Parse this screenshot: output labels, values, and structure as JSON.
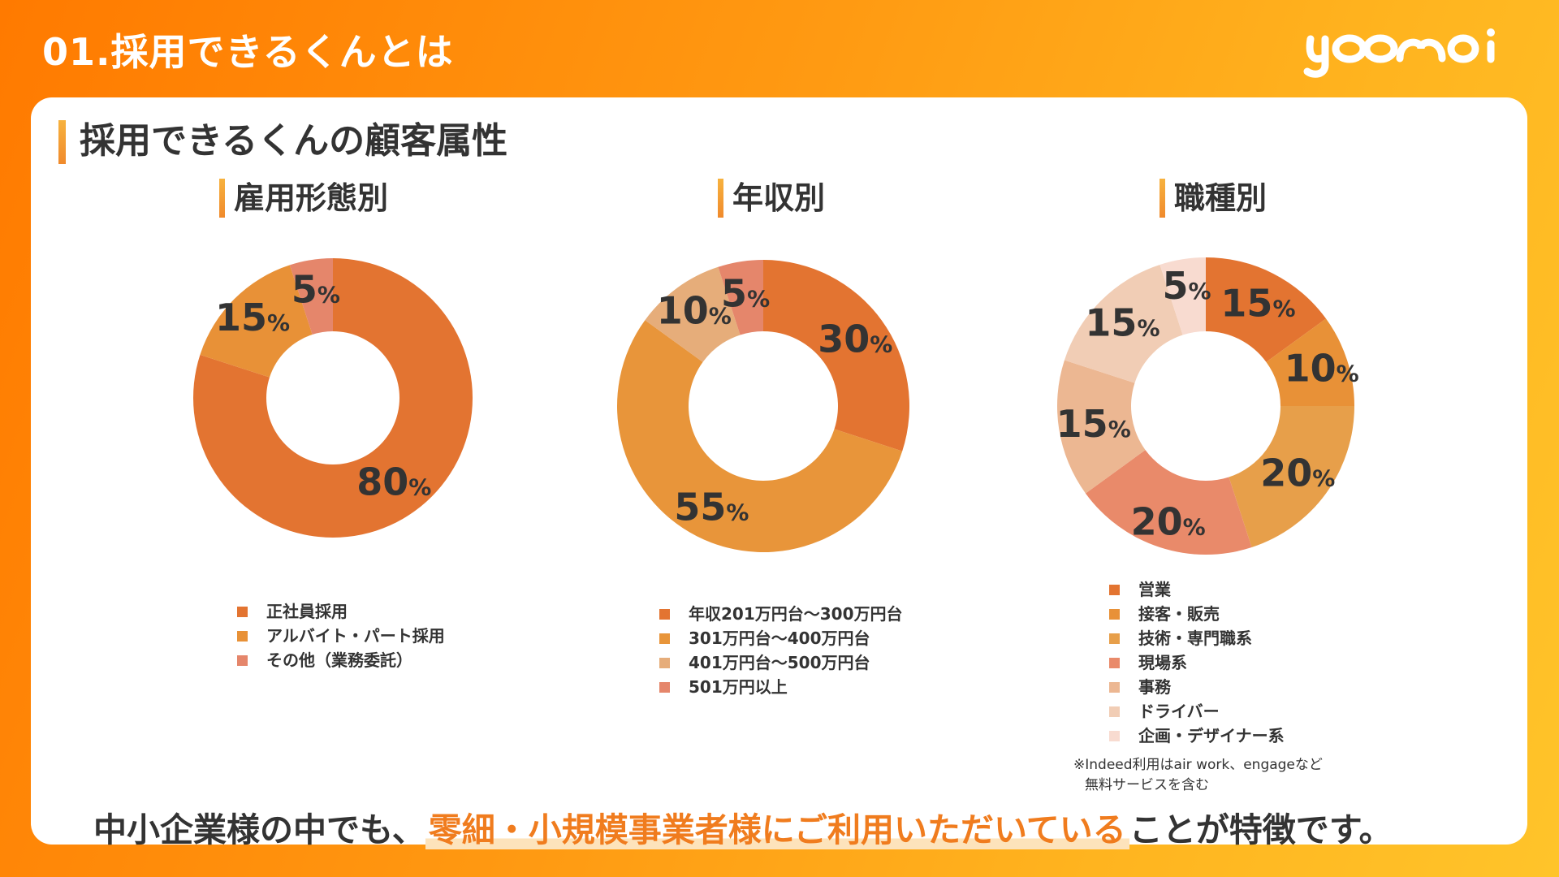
{
  "header": {
    "title": "01.採用できるくんとは",
    "logo_text": "yoomooi"
  },
  "card": {
    "heading": "採用できるくんの顧客属性",
    "tagline_prefix": "中小企業様の中でも、",
    "tagline_highlight": "零細・小規模事業者様にご利用いただいている",
    "tagline_suffix": "ことが特徴です。",
    "note_line1": "※Indeed利用はair work、engageなど",
    "note_line2": "無料サービスを含む"
  },
  "colors": {
    "accent": "#f07c1e",
    "white": "#ffffff",
    "text": "#333333"
  },
  "chart_data": [
    {
      "type": "pie",
      "title": "雇用形態別",
      "categories": [
        "正社員採用",
        "アルバイト・パート採用",
        "その他（業務委託）"
      ],
      "values": [
        80,
        15,
        5
      ],
      "unit": "%",
      "colors": [
        "#e37431",
        "#e89137",
        "#e5866b"
      ]
    },
    {
      "type": "pie",
      "title": "年収別",
      "categories": [
        "年収201万円台〜300万円台",
        "301万円台〜400万円台",
        "401万円台〜500万円台",
        "501万円以上"
      ],
      "values": [
        30,
        55,
        10,
        5
      ],
      "unit": "%",
      "colors": [
        "#e37431",
        "#e8953a",
        "#e6ad7a",
        "#e5866b"
      ]
    },
    {
      "type": "pie",
      "title": "職種別",
      "categories": [
        "営業",
        "接客・販売",
        "技術・専門職系",
        "現場系",
        "事務",
        "ドライバー",
        "企画・デザイナー系"
      ],
      "values": [
        15,
        10,
        20,
        20,
        15,
        15,
        5
      ],
      "unit": "%",
      "colors": [
        "#e37431",
        "#e89137",
        "#e79f4a",
        "#e98a6a",
        "#ecb792",
        "#f1cdb5",
        "#f8dbd0"
      ]
    }
  ]
}
